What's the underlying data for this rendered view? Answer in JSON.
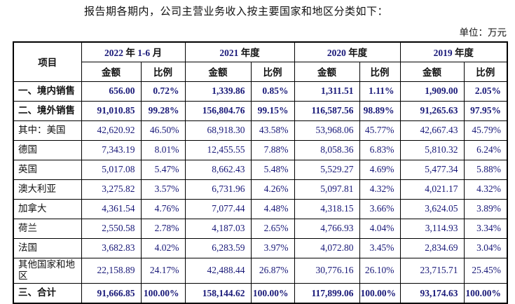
{
  "page": {
    "title": "报告期各期内，公司主营业务收入按主要国家和地区分类如下：",
    "unit_label": "单位：万元"
  },
  "colors": {
    "number_text": "#181878",
    "label_text": "#111111",
    "border": "#000000",
    "background": "#ffffff"
  },
  "table": {
    "header": {
      "item_label": "项目",
      "periods": [
        "2022 年 1-6 月",
        "2021 年度",
        "2020 年度",
        "2019 年度"
      ],
      "amount_label": "金额",
      "ratio_label": "比例"
    },
    "rows": [
      {
        "label": "一、境内销售",
        "bold": true,
        "tall": false,
        "values": [
          "656.00",
          "0.72%",
          "1,339.86",
          "0.85%",
          "1,311.51",
          "1.11%",
          "1,909.00",
          "2.05%"
        ]
      },
      {
        "label": "二、境外销售",
        "bold": true,
        "tall": false,
        "values": [
          "91,010.85",
          "99.28%",
          "156,804.76",
          "99.15%",
          "116,587.56",
          "98.89%",
          "91,265.63",
          "97.95%"
        ]
      },
      {
        "label": "其中：美国",
        "bold": false,
        "tall": false,
        "values": [
          "42,620.92",
          "46.50%",
          "68,918.30",
          "43.58%",
          "53,968.06",
          "45.77%",
          "42,667.43",
          "45.79%"
        ]
      },
      {
        "label": "德国",
        "bold": false,
        "tall": false,
        "values": [
          "7,343.19",
          "8.01%",
          "12,455.55",
          "7.88%",
          "8,058.36",
          "6.83%",
          "5,810.32",
          "6.24%"
        ]
      },
      {
        "label": "英国",
        "bold": false,
        "tall": false,
        "values": [
          "5,017.08",
          "5.47%",
          "8,662.43",
          "5.48%",
          "5,529.27",
          "4.69%",
          "5,477.34",
          "5.88%"
        ]
      },
      {
        "label": "澳大利亚",
        "bold": false,
        "tall": false,
        "values": [
          "3,275.82",
          "3.57%",
          "6,731.96",
          "4.26%",
          "5,097.81",
          "4.32%",
          "4,021.17",
          "4.32%"
        ]
      },
      {
        "label": "加拿大",
        "bold": false,
        "tall": false,
        "values": [
          "4,361.54",
          "4.76%",
          "7,077.44",
          "4.48%",
          "4,318.15",
          "3.66%",
          "3,624.05",
          "3.89%"
        ]
      },
      {
        "label": "荷兰",
        "bold": false,
        "tall": false,
        "values": [
          "2,550.58",
          "2.78%",
          "4,187.03",
          "2.65%",
          "4,766.93",
          "4.04%",
          "3,114.93",
          "3.34%"
        ]
      },
      {
        "label": "法国",
        "bold": false,
        "tall": false,
        "values": [
          "3,682.83",
          "4.02%",
          "6,283.59",
          "3.97%",
          "4,072.80",
          "3.45%",
          "2,834.69",
          "3.04%"
        ]
      },
      {
        "label": "其他国家和地区",
        "bold": false,
        "tall": true,
        "values": [
          "22,158.89",
          "24.17%",
          "42,488.44",
          "26.87%",
          "30,776.16",
          "26.10%",
          "23,715.71",
          "25.45%"
        ]
      },
      {
        "label": "三、合计",
        "bold": true,
        "tall": false,
        "values": [
          "91,666.85",
          "100.00%",
          "158,144.62",
          "100.00%",
          "117,899.06",
          "100.00%",
          "93,174.63",
          "100.00%"
        ]
      }
    ]
  }
}
